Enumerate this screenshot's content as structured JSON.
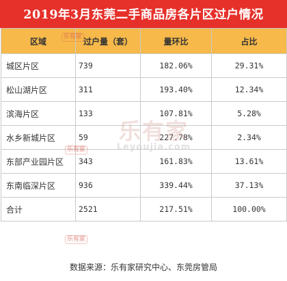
{
  "title": "2019年3月东莞二手商品房各片区过户情况",
  "table": {
    "headers": [
      "区域",
      "过户量（套）",
      "量环比",
      "占比"
    ],
    "rows": [
      [
        "城区片区",
        "739",
        "182.06%",
        "29.31%"
      ],
      [
        "松山湖片区",
        "311",
        "193.40%",
        "12.34%"
      ],
      [
        "滨海片区",
        "133",
        "107.81%",
        "5.28%"
      ],
      [
        "水乡新城片区",
        "59",
        "227.78%",
        "2.34%"
      ],
      [
        "东部产业园片区",
        "343",
        "161.83%",
        "13.61%"
      ],
      [
        "东南临深片区",
        "936",
        "339.44%",
        "37.13%"
      ],
      [
        "合计",
        "2521",
        "217.51%",
        "100.00%"
      ]
    ]
  },
  "source": "数据来源：乐有家研究中心、东莞房管局",
  "watermark": {
    "brand_cn": "乐有家",
    "brand_en": "Leyoujia.com"
  },
  "colors": {
    "title_bg": "#e6302a",
    "header_bg": "#f6b94a",
    "border": "#c9c9c9"
  }
}
